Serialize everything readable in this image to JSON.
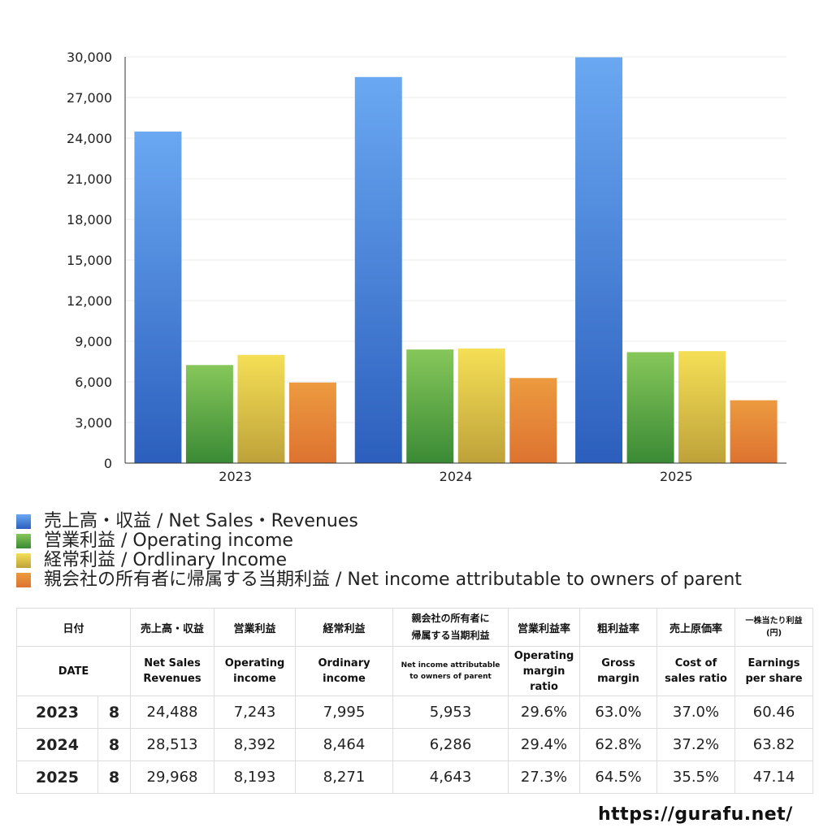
{
  "chart_data": {
    "type": "bar",
    "categories": [
      "2023",
      "2024",
      "2025"
    ],
    "ylim": [
      0,
      30000
    ],
    "yticks": [
      0,
      3000,
      6000,
      9000,
      12000,
      15000,
      18000,
      21000,
      24000,
      27000,
      30000
    ],
    "ytick_labels": [
      "0",
      "3,000",
      "6,000",
      "9,000",
      "12,000",
      "15,000",
      "18,000",
      "21,000",
      "24,000",
      "27,000",
      "30,000"
    ],
    "grid": true,
    "legend_position": "bottom",
    "series": [
      {
        "name": "売上高・収益 / Net Sales・Revenues",
        "values": [
          24488,
          28513,
          29968
        ],
        "color_top": "#6aa8f2",
        "color_bottom": "#2c5fbd"
      },
      {
        "name": "営業利益 / Operating income",
        "values": [
          7243,
          8392,
          8193
        ],
        "color_top": "#86c75a",
        "color_bottom": "#3a8a35"
      },
      {
        "name": "経常利益 / Ordlinary Income",
        "values": [
          7995,
          8464,
          8271
        ],
        "color_top": "#f5df55",
        "color_bottom": "#bea23a"
      },
      {
        "name": "親会社の所有者に帰属する当期利益 / Net income attributable to owners of parent",
        "values": [
          5953,
          6286,
          4643
        ],
        "color_top": "#ec9a3f",
        "color_bottom": "#dd7330"
      }
    ]
  },
  "table": {
    "header_jp": {
      "date": "日付",
      "sales": "売上高・収益",
      "operating": "営業利益",
      "ordinary": "経常利益",
      "net_line1": "親会社の所有者に",
      "net_line2": "帰属する当期利益",
      "op_margin": "営業利益率",
      "gross": "粗利益率",
      "cost": "売上原価率",
      "eps_line1": "一株当たり利益",
      "eps_line2": "(円)"
    },
    "header_en": {
      "date": "DATE",
      "sales_line1": "Net Sales",
      "sales_line2": "Revenues",
      "operating_line1": "Operating",
      "operating_line2": "income",
      "ordinary_line1": "Ordinary",
      "ordinary_line2": "income",
      "net_line1": "Net income attributable",
      "net_line2": "to owners of parent",
      "op_margin_line1": "Operating",
      "op_margin_line2": "margin",
      "op_margin_line3": "ratio",
      "gross_line1": "Gross",
      "gross_line2": "margin",
      "cost_line1": "Cost of",
      "cost_line2": "sales ratio",
      "eps_line1": "Earnings",
      "eps_line2": "per share"
    },
    "rows": [
      {
        "year": "2023",
        "month": "8",
        "sales": "24,488",
        "operating": "7,243",
        "ordinary": "7,995",
        "net": "5,953",
        "op_margin": "29.6%",
        "gross": "63.0%",
        "cost": "37.0%",
        "eps": "60.46"
      },
      {
        "year": "2024",
        "month": "8",
        "sales": "28,513",
        "operating": "8,392",
        "ordinary": "8,464",
        "net": "6,286",
        "op_margin": "29.4%",
        "gross": "62.8%",
        "cost": "37.2%",
        "eps": "63.82"
      },
      {
        "year": "2025",
        "month": "8",
        "sales": "29,968",
        "operating": "8,193",
        "ordinary": "8,271",
        "net": "4,643",
        "op_margin": "27.3%",
        "gross": "64.5%",
        "cost": "35.5%",
        "eps": "47.14"
      }
    ]
  },
  "footer": {
    "url": "https://gurafu.net/"
  }
}
